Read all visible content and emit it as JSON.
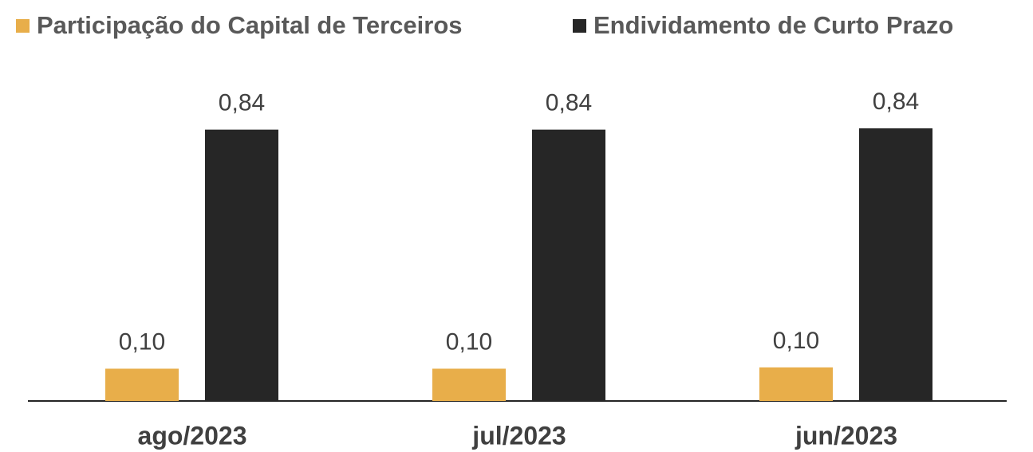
{
  "chart_data": {
    "type": "bar",
    "categories": [
      "ago/2023",
      "jul/2023",
      "jun/2023"
    ],
    "series": [
      {
        "name": "Participação do Capital de Terceiros",
        "color": "#E8AE4A",
        "values": [
          0.1,
          0.1,
          0.104
        ],
        "value_labels": [
          "0,10",
          "0,10",
          "0,10"
        ]
      },
      {
        "name": "Endividamento de Curto Prazo",
        "color": "#262626",
        "values": [
          0.84,
          0.84,
          0.844
        ],
        "value_labels": [
          "0,84",
          "0,84",
          "0,84"
        ]
      }
    ],
    "legend": "top"
  }
}
